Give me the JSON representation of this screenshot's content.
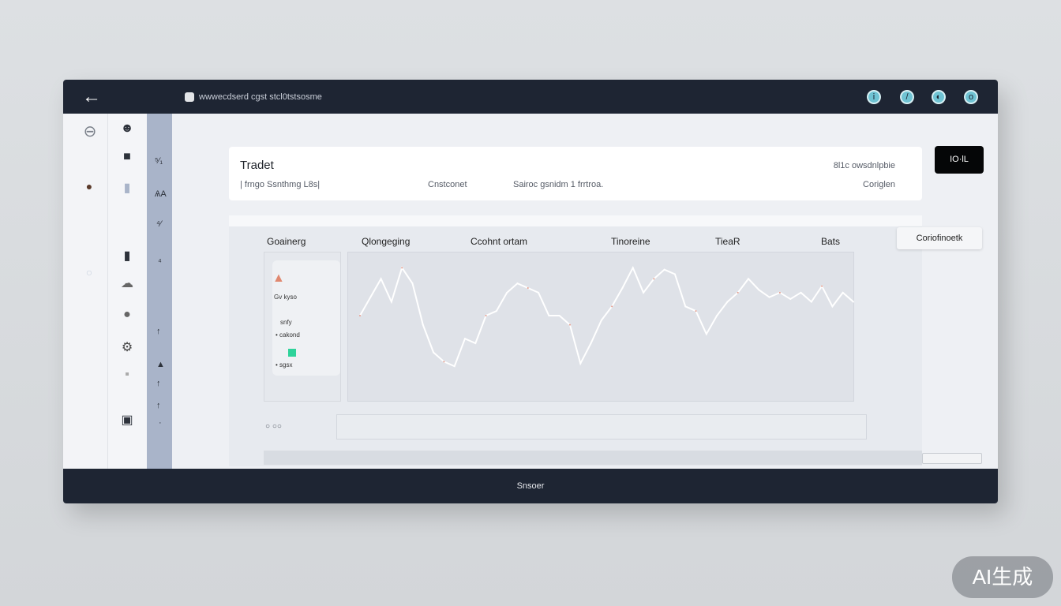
{
  "titlebar": {
    "back_icon": "arrow-left-icon",
    "url": "wwwecdserd cgst stcl0tstsosme",
    "icons": [
      "info-icon",
      "edit-icon",
      "globe-icon",
      "settings-icon"
    ]
  },
  "sidebar": {
    "col1_icons": [
      "dashboard-icon",
      "record-icon",
      "radio-icon"
    ],
    "col2_icons": [
      "user-group-icon",
      "profile-icon",
      "document-icon",
      "lock-icon",
      "cloud-icon",
      "chat-icon",
      "gear-icon",
      "notification-icon",
      "archive-icon"
    ],
    "strip_labels": [
      "⁵⁄₁",
      "ѦA",
      "⁴⁄",
      "⁴",
      "↑",
      "▲",
      "↑",
      "↑",
      "·"
    ]
  },
  "header_card": {
    "title": "Tradet",
    "subtitle": "| frngo  Ssnthmg  L8s|",
    "col2": "Cnstconet",
    "col3": "Sairoc gsnidm 1 frrtroa.",
    "right_top": "8l1c owsdnlpbie",
    "right_bottom": "Coriglen"
  },
  "action_button": "IO·lL",
  "tabs": [
    "Goainerg",
    "Qlongeging",
    "Ccohnt ortam",
    "Tinoreine",
    "TieaR",
    "Bats"
  ],
  "right_button": "Coriofinoetk",
  "legend": {
    "label1": "Gv kyso",
    "label2": "snfy",
    "label3": "• cakond",
    "label4": "• sgsx",
    "accent": "#2ed39a"
  },
  "scroll_label": "○ ○○",
  "bottom_bar": "Snsoer",
  "watermark": "AI生成",
  "chart_data": {
    "type": "line",
    "title": "",
    "xlabel": "",
    "ylabel": "",
    "ylim": [
      0,
      120
    ],
    "grid": false,
    "values": [
      60,
      80,
      100,
      75,
      112,
      95,
      50,
      20,
      10,
      5,
      35,
      30,
      60,
      65,
      85,
      95,
      90,
      85,
      60,
      60,
      50,
      8,
      30,
      55,
      70,
      90,
      112,
      85,
      100,
      110,
      105,
      70,
      65,
      40,
      60,
      75,
      85,
      100,
      88,
      80,
      85,
      78,
      85,
      75,
      92,
      70,
      85,
      75
    ],
    "line_color": "#ffffff",
    "accent_color": "#e59a8a"
  }
}
